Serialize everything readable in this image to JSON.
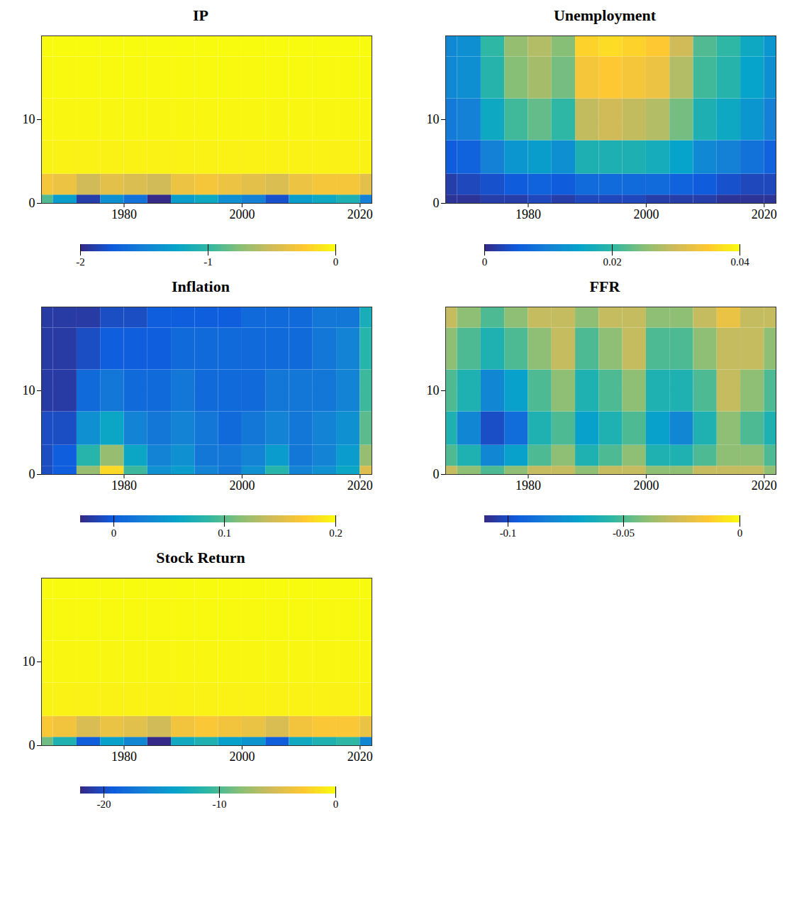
{
  "chart_data": [
    {
      "type": "surface",
      "title": "IP",
      "x": [
        1966,
        1970,
        1974,
        1978,
        1982,
        1986,
        1990,
        1994,
        1998,
        2002,
        2006,
        2010,
        2014,
        2018,
        2022
      ],
      "y": [
        0,
        2,
        5,
        10,
        15,
        20
      ],
      "z": [
        [
          -0.9,
          -1.3,
          -1.9,
          -1.4,
          -1.6,
          -2.0,
          -1.3,
          -1.2,
          -1.4,
          -1.5,
          -1.8,
          -1.3,
          -1.2,
          -1.1,
          -1.5
        ],
        [
          -0.3,
          -0.35,
          -0.5,
          -0.4,
          -0.45,
          -0.5,
          -0.35,
          -0.3,
          -0.35,
          -0.4,
          -0.45,
          -0.35,
          -0.3,
          -0.3,
          -0.4
        ],
        [
          -0.05,
          -0.05,
          -0.05,
          -0.05,
          -0.05,
          -0.05,
          -0.05,
          -0.05,
          -0.05,
          -0.05,
          -0.05,
          -0.05,
          -0.05,
          -0.05,
          -0.05
        ],
        [
          -0.02,
          -0.02,
          -0.02,
          -0.02,
          -0.02,
          -0.02,
          -0.02,
          -0.02,
          -0.02,
          -0.02,
          -0.02,
          -0.02,
          -0.02,
          -0.02,
          -0.02
        ],
        [
          -0.01,
          -0.01,
          -0.01,
          -0.01,
          -0.01,
          -0.01,
          -0.01,
          -0.01,
          -0.01,
          -0.01,
          -0.01,
          -0.01,
          -0.01,
          -0.01,
          -0.01
        ],
        [
          0,
          0,
          0,
          0,
          0,
          0,
          0,
          0,
          0,
          0,
          0,
          0,
          0,
          0,
          0
        ]
      ],
      "xlim": [
        1966,
        2022
      ],
      "xticks": [
        1980,
        2000,
        2020
      ],
      "ylim": [
        0,
        20
      ],
      "yticks": [
        0,
        10
      ],
      "zlim": [
        -2,
        0
      ],
      "zticks": [
        -2,
        -1,
        0
      ]
    },
    {
      "type": "surface",
      "title": "Unemployment",
      "x": [
        1966,
        1970,
        1974,
        1978,
        1982,
        1986,
        1990,
        1994,
        1998,
        2002,
        2006,
        2010,
        2014,
        2018,
        2022
      ],
      "y": [
        0,
        2,
        5,
        10,
        15,
        20
      ],
      "z": [
        [
          0.001,
          0.001,
          0.002,
          0.002,
          0.003,
          0.002,
          0.003,
          0.003,
          0.003,
          0.002,
          0.002,
          0.002,
          0.001,
          0.001,
          0.001
        ],
        [
          0.002,
          0.003,
          0.004,
          0.005,
          0.006,
          0.005,
          0.007,
          0.007,
          0.007,
          0.007,
          0.006,
          0.005,
          0.004,
          0.003,
          0.003
        ],
        [
          0.005,
          0.006,
          0.01,
          0.013,
          0.014,
          0.012,
          0.018,
          0.018,
          0.018,
          0.017,
          0.015,
          0.011,
          0.01,
          0.008,
          0.006
        ],
        [
          0.009,
          0.01,
          0.016,
          0.021,
          0.023,
          0.02,
          0.029,
          0.03,
          0.029,
          0.028,
          0.024,
          0.018,
          0.016,
          0.013,
          0.01
        ],
        [
          0.011,
          0.012,
          0.019,
          0.025,
          0.027,
          0.024,
          0.034,
          0.035,
          0.034,
          0.033,
          0.028,
          0.021,
          0.019,
          0.015,
          0.012
        ],
        [
          0.011,
          0.012,
          0.02,
          0.026,
          0.028,
          0.025,
          0.036,
          0.037,
          0.036,
          0.035,
          0.03,
          0.022,
          0.02,
          0.016,
          0.013
        ]
      ],
      "xlim": [
        1966,
        2022
      ],
      "xticks": [
        1980,
        2000,
        2020
      ],
      "ylim": [
        0,
        20
      ],
      "yticks": [
        0,
        10
      ],
      "zlim": [
        0,
        0.04
      ],
      "zticks": [
        0,
        0.02,
        0.04
      ]
    },
    {
      "type": "surface",
      "title": "Inflation",
      "x": [
        1966,
        1970,
        1974,
        1978,
        1982,
        1986,
        1990,
        1994,
        1998,
        2002,
        2006,
        2010,
        2014,
        2018,
        2022
      ],
      "y": [
        0,
        2,
        5,
        10,
        15,
        20
      ],
      "z": [
        [
          -0.01,
          0.0,
          0.12,
          0.18,
          0.09,
          0.04,
          0.05,
          0.03,
          0.02,
          0.04,
          0.08,
          0.03,
          0.04,
          0.06,
          0.15
        ],
        [
          -0.01,
          0.0,
          0.08,
          0.12,
          0.06,
          0.03,
          0.04,
          0.02,
          0.02,
          0.03,
          0.05,
          0.02,
          0.03,
          0.05,
          0.12
        ],
        [
          -0.01,
          -0.01,
          0.04,
          0.06,
          0.03,
          0.02,
          0.03,
          0.02,
          0.01,
          0.02,
          0.03,
          0.02,
          0.03,
          0.04,
          0.1
        ],
        [
          -0.02,
          -0.02,
          0.01,
          0.02,
          0.01,
          0.01,
          0.02,
          0.01,
          0.01,
          0.01,
          0.02,
          0.02,
          0.02,
          0.03,
          0.09
        ],
        [
          -0.02,
          -0.02,
          -0.01,
          0.0,
          0.0,
          0.0,
          0.01,
          0.01,
          0.01,
          0.01,
          0.01,
          0.01,
          0.02,
          0.03,
          0.08
        ],
        [
          -0.02,
          -0.02,
          -0.02,
          -0.01,
          -0.01,
          0.0,
          0.0,
          0.0,
          0.0,
          0.01,
          0.01,
          0.01,
          0.02,
          0.02,
          0.07
        ]
      ],
      "xlim": [
        1966,
        2022
      ],
      "xticks": [
        1980,
        2000,
        2020
      ],
      "ylim": [
        0,
        20
      ],
      "yticks": [
        0,
        10
      ],
      "zlim": [
        -0.03,
        0.2
      ],
      "zticks": [
        0,
        0.1,
        0.2
      ]
    },
    {
      "type": "surface",
      "title": "FFR",
      "x": [
        1966,
        1970,
        1974,
        1978,
        1982,
        1986,
        1990,
        1994,
        1998,
        2002,
        2006,
        2010,
        2014,
        2018,
        2022
      ],
      "y": [
        0,
        2,
        5,
        10,
        15,
        20
      ],
      "z": [
        [
          -0.03,
          -0.04,
          -0.05,
          -0.04,
          -0.03,
          -0.03,
          -0.04,
          -0.03,
          -0.03,
          -0.04,
          -0.04,
          -0.03,
          -0.03,
          -0.03,
          -0.04
        ],
        [
          -0.05,
          -0.06,
          -0.08,
          -0.07,
          -0.05,
          -0.04,
          -0.06,
          -0.05,
          -0.04,
          -0.06,
          -0.06,
          -0.05,
          -0.04,
          -0.04,
          -0.05
        ],
        [
          -0.06,
          -0.08,
          -0.1,
          -0.09,
          -0.06,
          -0.05,
          -0.07,
          -0.06,
          -0.05,
          -0.07,
          -0.08,
          -0.06,
          -0.04,
          -0.05,
          -0.06
        ],
        [
          -0.05,
          -0.06,
          -0.08,
          -0.07,
          -0.05,
          -0.04,
          -0.06,
          -0.05,
          -0.04,
          -0.06,
          -0.06,
          -0.05,
          -0.03,
          -0.04,
          -0.05
        ],
        [
          -0.04,
          -0.05,
          -0.06,
          -0.05,
          -0.04,
          -0.03,
          -0.05,
          -0.04,
          -0.03,
          -0.05,
          -0.05,
          -0.04,
          -0.03,
          -0.03,
          -0.04
        ],
        [
          -0.03,
          -0.04,
          -0.05,
          -0.04,
          -0.03,
          -0.03,
          -0.04,
          -0.03,
          -0.03,
          -0.04,
          -0.04,
          -0.03,
          -0.02,
          -0.03,
          -0.03
        ]
      ],
      "xlim": [
        1966,
        2022
      ],
      "xticks": [
        1980,
        2000,
        2020
      ],
      "ylim": [
        0,
        20
      ],
      "yticks": [
        0,
        10
      ],
      "zlim": [
        -0.11,
        0
      ],
      "zticks": [
        -0.1,
        -0.05,
        0
      ]
    },
    {
      "type": "surface",
      "title": "Stock Return",
      "x": [
        1966,
        1970,
        1974,
        1978,
        1982,
        1986,
        1990,
        1994,
        1998,
        2002,
        2006,
        2010,
        2014,
        2018,
        2022
      ],
      "y": [
        0,
        2,
        5,
        10,
        15,
        20
      ],
      "z": [
        [
          -9,
          -12,
          -19,
          -14,
          -16,
          -22,
          -13,
          -12,
          -14,
          -15,
          -19,
          -13,
          -12,
          -11,
          -16
        ],
        [
          -3,
          -3.5,
          -5,
          -4,
          -4.5,
          -5.5,
          -3.5,
          -3,
          -3.5,
          -4,
          -5,
          -3.5,
          -3,
          -3,
          -4
        ],
        [
          -0.5,
          -0.5,
          -0.5,
          -0.5,
          -0.5,
          -0.5,
          -0.5,
          -0.5,
          -0.5,
          -0.5,
          -0.5,
          -0.5,
          -0.5,
          -0.5,
          -0.5
        ],
        [
          -0.2,
          -0.2,
          -0.2,
          -0.2,
          -0.2,
          -0.2,
          -0.2,
          -0.2,
          -0.2,
          -0.2,
          -0.2,
          -0.2,
          -0.2,
          -0.2,
          -0.2
        ],
        [
          -0.1,
          -0.1,
          -0.1,
          -0.1,
          -0.1,
          -0.1,
          -0.1,
          -0.1,
          -0.1,
          -0.1,
          -0.1,
          -0.1,
          -0.1,
          -0.1,
          -0.1
        ],
        [
          0,
          0,
          0,
          0,
          0,
          0,
          0,
          0,
          0,
          0,
          0,
          0,
          0,
          0,
          0
        ]
      ],
      "xlim": [
        1966,
        2022
      ],
      "xticks": [
        1980,
        2000,
        2020
      ],
      "ylim": [
        0,
        20
      ],
      "yticks": [
        0,
        10
      ],
      "zlim": [
        -22,
        0
      ],
      "zticks": [
        -20,
        -10,
        0
      ]
    }
  ]
}
